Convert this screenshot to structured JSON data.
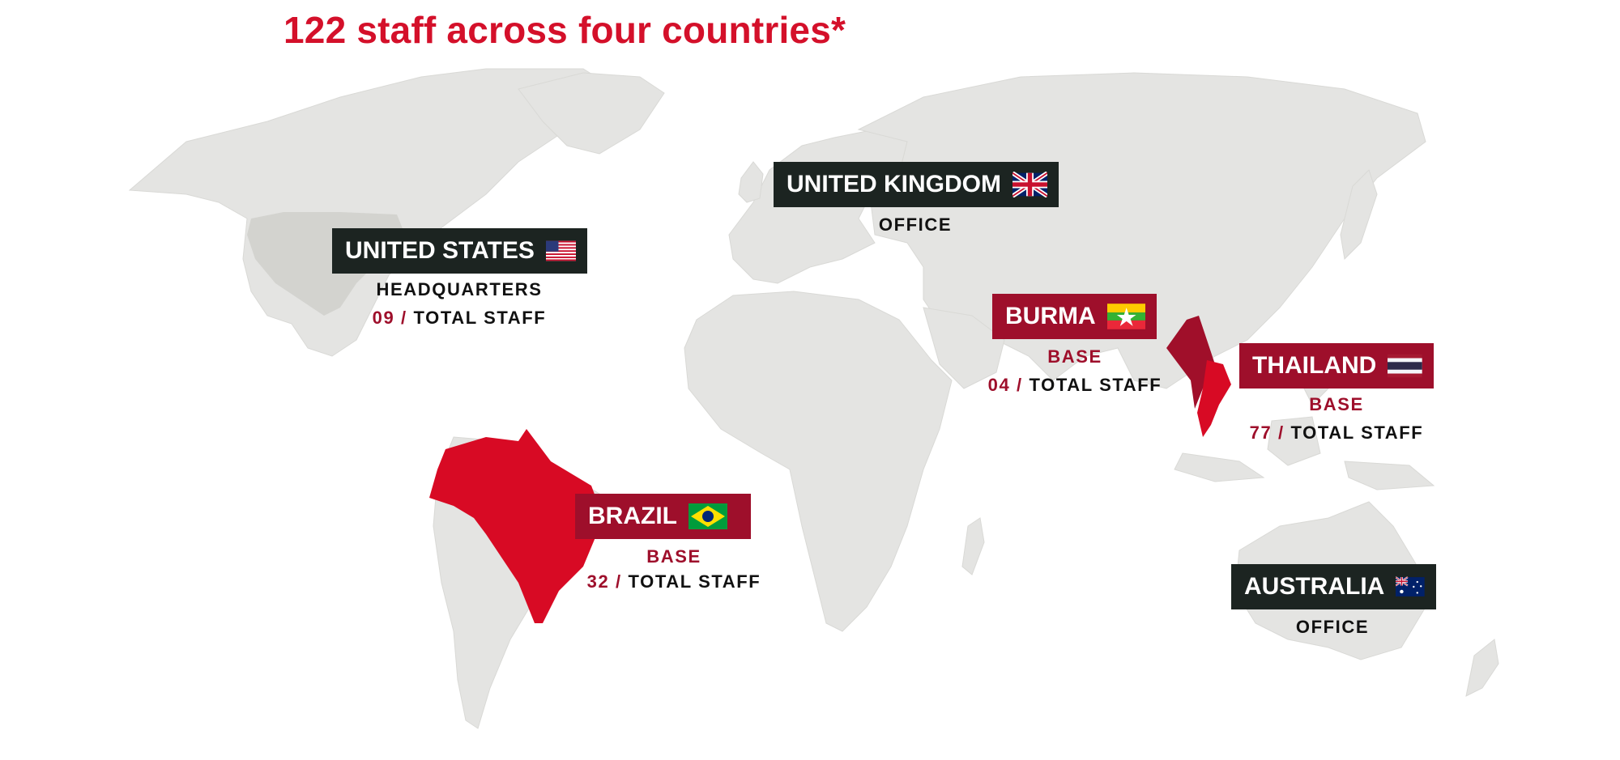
{
  "title": "122 staff across four countries*",
  "colors": {
    "title_red": "#d4102a",
    "highlight_red": "#d80a24",
    "label_dark": "#1c2421",
    "label_red": "#9e0f2b",
    "land_gray": "#e4e4e2",
    "us_gray": "#d3d3cf"
  },
  "locations": {
    "united_states": {
      "name": "UNITED STATES",
      "role": "HEADQUARTERS",
      "count": "09",
      "sep": "/",
      "count_label": "TOTAL STAFF",
      "flag": "us-flag-icon"
    },
    "united_kingdom": {
      "name": "UNITED KINGDOM",
      "role": "OFFICE",
      "flag": "uk-flag-icon"
    },
    "burma": {
      "name": "BURMA",
      "role": "BASE",
      "count": "04",
      "sep": "/",
      "count_label": "TOTAL STAFF",
      "flag": "burma-flag-icon"
    },
    "thailand": {
      "name": "THAILAND",
      "role": "BASE",
      "count": "77",
      "sep": "/",
      "count_label": "TOTAL STAFF",
      "flag": "thailand-flag-icon"
    },
    "brazil": {
      "name": "BRAZIL",
      "role": "BASE",
      "count": "32",
      "sep": "/",
      "count_label": "TOTAL STAFF",
      "flag": "brazil-flag-icon"
    },
    "australia": {
      "name": "AUSTRALIA",
      "role": "OFFICE",
      "flag": "australia-flag-icon"
    }
  }
}
